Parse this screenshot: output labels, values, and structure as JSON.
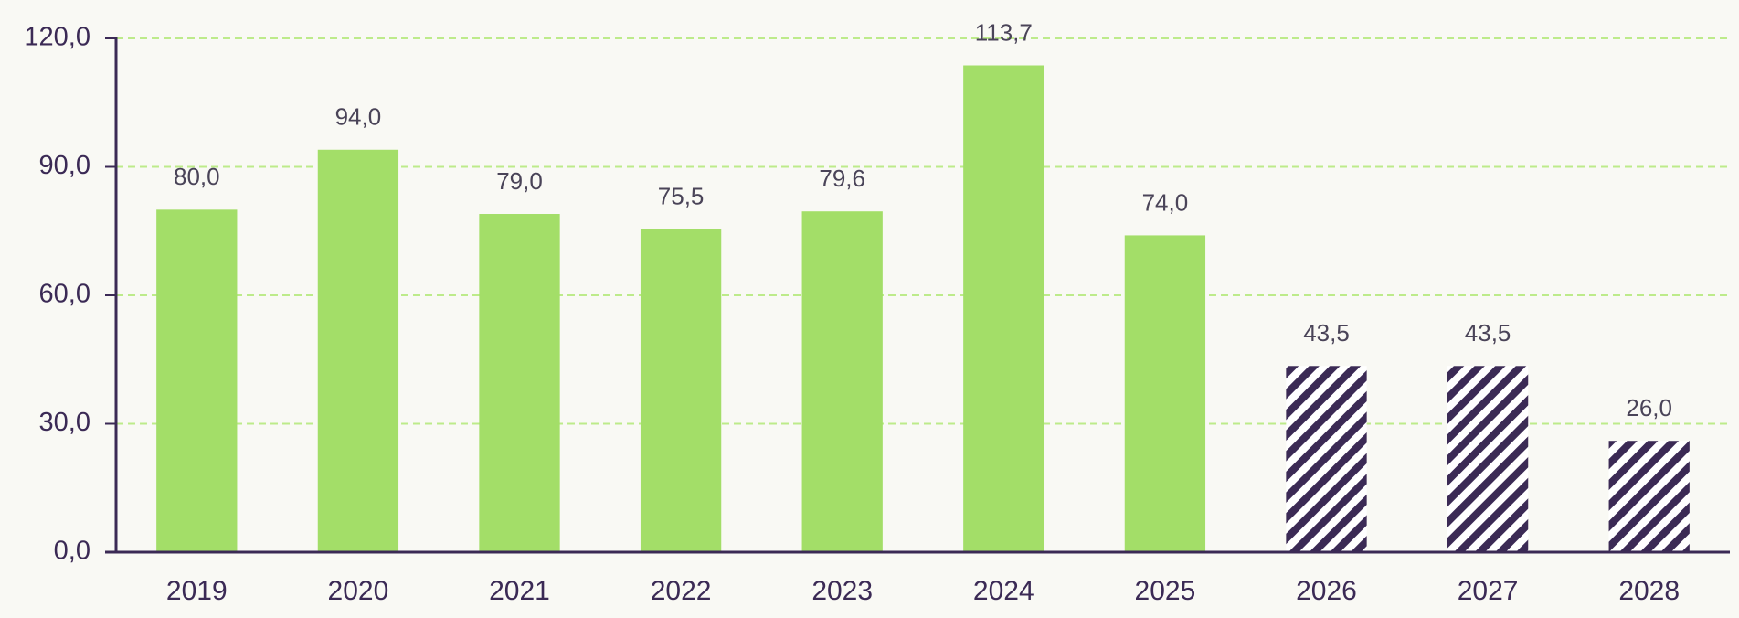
{
  "chart_data": {
    "type": "bar",
    "categories": [
      "2019",
      "2020",
      "2021",
      "2022",
      "2023",
      "2024",
      "2025",
      "2026",
      "2027",
      "2028"
    ],
    "values": [
      80.0,
      94.0,
      79.0,
      75.5,
      79.6,
      113.7,
      74.0,
      43.5,
      43.5,
      26.0
    ],
    "value_labels": [
      "80,0",
      "94,0",
      "79,0",
      "75,5",
      "79,6",
      "113,7",
      "74,0",
      "43,5",
      "43,5",
      "26,0"
    ],
    "color": "#a3de68",
    "hatched": [
      false,
      false,
      false,
      false,
      false,
      false,
      false,
      true,
      true,
      true
    ],
    "hatch_color": "#3b2a55",
    "ylim": [
      0,
      120
    ],
    "yticks": [
      {
        "value": 0,
        "label": "0,0"
      },
      {
        "value": 30,
        "label": "30,0"
      },
      {
        "value": 60,
        "label": "60,0"
      },
      {
        "value": 90,
        "label": "90,0"
      },
      {
        "value": 120,
        "label": "120,0"
      }
    ],
    "grid": true
  }
}
